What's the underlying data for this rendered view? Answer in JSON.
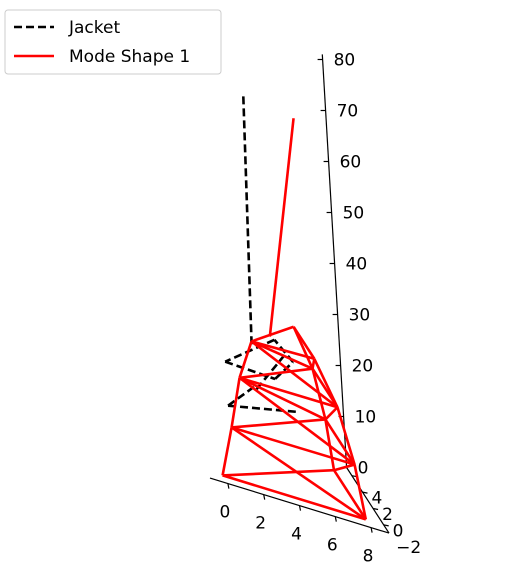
{
  "chart_data": {
    "type": "line",
    "projection": "3d",
    "legend": {
      "placement": "top-left",
      "entries": [
        {
          "label": "Jacket",
          "style": "dashed",
          "color": "#000000"
        },
        {
          "label": "Mode Shape 1",
          "style": "solid",
          "color": "#ff0000"
        }
      ]
    },
    "axes": {
      "x": {
        "ticks": [
          "0",
          "2",
          "4",
          "6",
          "8"
        ],
        "range": [
          -1,
          9
        ]
      },
      "y": {
        "ticks": [
          "−2",
          "0",
          "2",
          "4"
        ],
        "range": [
          -3,
          5
        ]
      },
      "z": {
        "ticks": [
          "0",
          "10",
          "20",
          "30",
          "40",
          "50",
          "60",
          "70",
          "80"
        ],
        "range": [
          0,
          81
        ]
      }
    },
    "series": [
      {
        "name": "Jacket",
        "color": "#000000",
        "style": "dashed",
        "segments": [
          [
            [
              0.5,
              -2.1,
              23
            ],
            [
              3.2,
              -2.4,
              23
            ]
          ],
          [
            [
              3.2,
              -2.4,
              23
            ],
            [
              4.8,
              -0.5,
              25
            ]
          ],
          [
            [
              4.8,
              -0.5,
              25
            ],
            [
              4.5,
              2.0,
              25
            ]
          ],
          [
            [
              4.5,
              2.0,
              25
            ],
            [
              0.5,
              -2.1,
              23
            ]
          ],
          [
            [
              0.6,
              -1.8,
              14
            ],
            [
              4.8,
              -1.0,
              16
            ]
          ],
          [
            [
              0.6,
              -1.8,
              14
            ],
            [
              3.0,
              1.0,
              16
            ]
          ],
          [
            [
              2.5,
              -1.0,
              18
            ],
            [
              5.0,
              1.8,
              23
            ]
          ],
          [
            [
              2.5,
              -0.5,
              26
            ],
            [
              3.0,
              0.0,
              75
            ]
          ]
        ]
      },
      {
        "name": "Mode Shape 1",
        "color": "#ff0000",
        "style": "solid",
        "segments": [
          [
            [
              0,
              -2,
              0
            ],
            [
              8,
              -2,
              0
            ]
          ],
          [
            [
              8,
              -2,
              0
            ],
            [
              8,
              4,
              0
            ]
          ],
          [
            [
              0,
              -2,
              0
            ],
            [
              8,
              4,
              0
            ]
          ],
          [
            [
              0,
              -2,
              0
            ],
            [
              0.7,
              -1.9,
              10
            ]
          ],
          [
            [
              8,
              -2,
              0
            ],
            [
              7.6,
              -1.8,
              10
            ]
          ],
          [
            [
              8,
              4,
              0
            ],
            [
              7.6,
              3.7,
              10
            ]
          ],
          [
            [
              0.7,
              -1.9,
              10
            ],
            [
              7.6,
              -1.8,
              10
            ]
          ],
          [
            [
              7.6,
              -1.8,
              10
            ],
            [
              7.6,
              3.7,
              10
            ]
          ],
          [
            [
              0.7,
              -1.9,
              10
            ],
            [
              7.6,
              3.7,
              10
            ]
          ],
          [
            [
              0.7,
              -1.9,
              10
            ],
            [
              8,
              -2,
              0
            ]
          ],
          [
            [
              7.6,
              -1.8,
              10
            ],
            [
              8,
              4,
              0
            ]
          ],
          [
            [
              0.7,
              -1.9,
              10
            ],
            [
              1.4,
              -1.6,
              20
            ]
          ],
          [
            [
              7.6,
              -1.8,
              10
            ],
            [
              6.9,
              -1.5,
              20
            ]
          ],
          [
            [
              7.6,
              3.7,
              10
            ],
            [
              6.9,
              3.2,
              20
            ]
          ],
          [
            [
              1.4,
              -1.6,
              20
            ],
            [
              6.9,
              -1.5,
              20
            ]
          ],
          [
            [
              6.9,
              -1.5,
              20
            ],
            [
              6.9,
              3.2,
              20
            ]
          ],
          [
            [
              1.4,
              -1.6,
              20
            ],
            [
              6.9,
              3.2,
              20
            ]
          ],
          [
            [
              1.4,
              -1.6,
              20
            ],
            [
              7.6,
              -1.8,
              10
            ]
          ],
          [
            [
              6.9,
              -1.5,
              20
            ],
            [
              7.6,
              3.7,
              10
            ]
          ],
          [
            [
              1.4,
              -1.6,
              20
            ],
            [
              7.6,
              3.7,
              10
            ]
          ],
          [
            [
              1.4,
              -1.6,
              20
            ],
            [
              2.2,
              -1.6,
              28
            ]
          ],
          [
            [
              6.9,
              -1.5,
              20
            ],
            [
              5.8,
              -1.3,
              28
            ]
          ],
          [
            [
              6.9,
              3.2,
              20
            ],
            [
              5.8,
              2.6,
              28
            ]
          ],
          [
            [
              2.2,
              -1.6,
              28
            ],
            [
              5.8,
              -1.3,
              28
            ]
          ],
          [
            [
              5.8,
              -1.3,
              28
            ],
            [
              5.8,
              2.6,
              28
            ]
          ],
          [
            [
              2.2,
              -1.6,
              28
            ],
            [
              5.8,
              2.6,
              28
            ]
          ],
          [
            [
              2.2,
              -1.6,
              28
            ],
            [
              6.9,
              -1.5,
              20
            ]
          ],
          [
            [
              5.8,
              -1.3,
              28
            ],
            [
              6.9,
              3.2,
              20
            ]
          ],
          [
            [
              2.2,
              -1.6,
              28
            ],
            [
              6.9,
              3.2,
              20
            ]
          ],
          [
            [
              3.7,
              0.0,
              28
            ],
            [
              6.0,
              0.8,
              72
            ]
          ]
        ]
      }
    ]
  }
}
